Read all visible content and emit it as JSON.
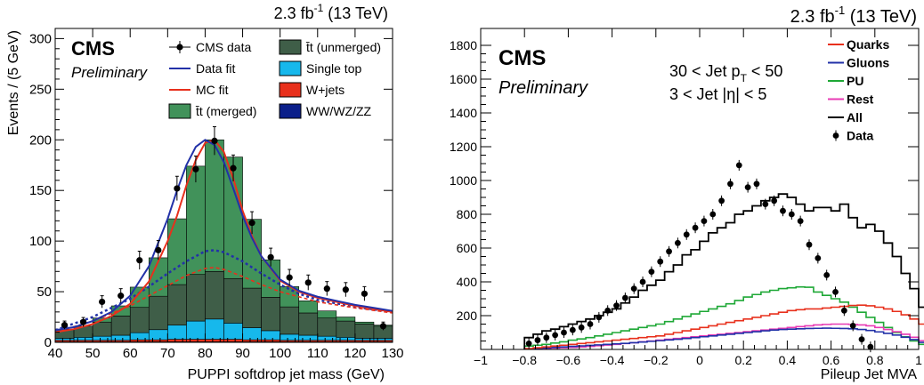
{
  "chart_data": [
    {
      "type": "bar",
      "stacked": true,
      "title": "",
      "lumi_label": "2.3 fb",
      "lumi_sup": "-1",
      "lumi_energy": " (13 TeV)",
      "cms_label": "CMS",
      "cms_sub": "Preliminary",
      "xlabel": "PUPPI softdrop jet mass (GeV)",
      "ylabel": "Events / (5 GeV)",
      "xlim": [
        40,
        130
      ],
      "ylim": [
        0,
        310
      ],
      "xticks": [
        40,
        50,
        60,
        70,
        80,
        90,
        100,
        110,
        120,
        130
      ],
      "yticks": [
        0,
        50,
        100,
        150,
        200,
        250,
        300
      ],
      "bin_edges": [
        40,
        45,
        50,
        55,
        60,
        65,
        70,
        75,
        80,
        85,
        90,
        95,
        100,
        105,
        110,
        115,
        120,
        125,
        130
      ],
      "stack": [
        {
          "name": "WW/WZ/ZZ",
          "color": "#0b1f8a",
          "values": [
            0.5,
            0.5,
            0.5,
            0.5,
            0.5,
            0.5,
            0.5,
            0.5,
            0.5,
            0.5,
            0.5,
            0.5,
            0.5,
            0.5,
            0.5,
            0.5,
            0.5,
            0.5
          ]
        },
        {
          "name": "W+jets",
          "color": "#e8301c",
          "values": [
            1.5,
            1.5,
            1.5,
            1.5,
            2,
            2,
            2.5,
            2.5,
            2.5,
            2.5,
            2,
            2,
            1.5,
            1.5,
            1.5,
            1.5,
            1.5,
            1.5
          ]
        },
        {
          "name": "Single top",
          "color": "#16b8ec",
          "values": [
            2,
            3,
            4,
            5,
            7,
            10,
            14,
            18,
            20,
            16,
            12,
            9,
            6,
            5,
            4,
            3,
            2,
            2
          ]
        },
        {
          "name": "t̄t (unmerged)",
          "color": "#3f5e48",
          "values": [
            9,
            11,
            14,
            19,
            25,
            33,
            40,
            46,
            47,
            44,
            39,
            33,
            27,
            22,
            18,
            16,
            14,
            12
          ]
        },
        {
          "name": "t̄t (merged)",
          "color": "#41925a",
          "values": [
            0,
            0,
            4,
            10,
            20,
            38,
            65,
            107,
            130,
            120,
            68,
            37,
            20,
            12,
            7,
            4,
            2,
            1
          ]
        }
      ],
      "data_points": {
        "name": "CMS data",
        "x": [
          42.5,
          47.5,
          52.5,
          57.5,
          62.5,
          67.5,
          72.5,
          77.5,
          82.5,
          87.5,
          92.5,
          97.5,
          102.5,
          107.5,
          112.5,
          117.5,
          122.5,
          127.5
        ],
        "y": [
          17,
          20,
          40,
          46,
          81,
          91,
          152,
          171,
          199,
          172,
          118,
          84,
          64,
          59,
          53,
          52,
          48,
          16
        ],
        "err": [
          4,
          4.5,
          6,
          7,
          9,
          9.5,
          12,
          13,
          14,
          13,
          11,
          9,
          8,
          7.5,
          7,
          7,
          7,
          4
        ]
      },
      "data_fit": {
        "name": "Data fit",
        "color": "#2231a8",
        "x": [
          40,
          45,
          50,
          55,
          60,
          65,
          70,
          72.5,
          75,
          77.5,
          80,
          82.5,
          85,
          87.5,
          90,
          92.5,
          95,
          100,
          105,
          110,
          115,
          120,
          125,
          130
        ],
        "y": [
          12,
          15,
          21,
          30,
          46,
          75,
          122,
          150,
          175,
          193,
          200,
          195,
          178,
          152,
          125,
          103,
          85,
          62,
          51,
          45,
          41,
          37,
          34,
          31
        ]
      },
      "mc_fit": {
        "name": "MC fit",
        "color": "#e8301c",
        "x": [
          40,
          45,
          50,
          55,
          60,
          65,
          70,
          72.5,
          75,
          77.5,
          80,
          82.5,
          85,
          87.5,
          90,
          92.5,
          95,
          100,
          105,
          110,
          115,
          120,
          125,
          130
        ],
        "y": [
          10,
          13,
          18,
          26,
          38,
          60,
          100,
          125,
          155,
          180,
          197,
          200,
          188,
          162,
          130,
          105,
          85,
          61,
          50,
          44,
          40,
          36,
          33,
          30
        ]
      },
      "dashed_lines": [
        {
          "color": "#2231a8",
          "x": [
            40,
            50,
            60,
            65,
            70,
            75,
            80,
            82.5,
            85,
            90,
            95,
            100,
            105,
            110,
            120,
            130
          ],
          "y": [
            12,
            25,
            43,
            55,
            68,
            80,
            90,
            91,
            89,
            80,
            68,
            57,
            48,
            42,
            35,
            30
          ]
        },
        {
          "color": "#e8301c",
          "x": [
            40,
            50,
            60,
            65,
            70,
            75,
            80,
            82.5,
            85,
            90,
            95,
            100,
            105,
            110,
            120,
            130
          ],
          "y": [
            10,
            21,
            36,
            46,
            56,
            66,
            73,
            74,
            72,
            65,
            57,
            50,
            45,
            40,
            34,
            29
          ]
        }
      ],
      "legend": [
        {
          "label": "CMS data",
          "kind": "marker"
        },
        {
          "label": "Data fit",
          "kind": "line",
          "color": "#2231a8"
        },
        {
          "label": "MC fit",
          "kind": "line",
          "color": "#e8301c"
        },
        {
          "label": "t̄t (merged)",
          "kind": "box",
          "color": "#41925a"
        },
        {
          "label": "t̄t (unmerged)",
          "kind": "box",
          "color": "#3f5e48"
        },
        {
          "label": "Single top",
          "kind": "box",
          "color": "#16b8ec"
        },
        {
          "label": "W+jets",
          "kind": "box",
          "color": "#e8301c"
        },
        {
          "label": "WW/WZ/ZZ",
          "kind": "box",
          "color": "#0b1f8a"
        }
      ],
      "legend_position": "top-right"
    },
    {
      "type": "line",
      "step": true,
      "title": "",
      "lumi_label": "2.3 fb",
      "lumi_sup": "-1",
      "lumi_energy": " (13 TeV)",
      "cms_label": "CMS",
      "cms_sub": "Preliminary",
      "cut_line1_prefix": "30 < Jet p",
      "cut_line1_sub": "T",
      "cut_line1_suffix": " < 50",
      "cut_line2": "3 < Jet |η| < 5",
      "xlabel": "Pileup Jet MVA",
      "ylabel": "",
      "xlim": [
        -1,
        1
      ],
      "ylim": [
        0,
        1900
      ],
      "xticks": [
        -1,
        -0.8,
        -0.6,
        -0.4,
        -0.2,
        0,
        0.2,
        0.4,
        0.6,
        0.8,
        1
      ],
      "xtick_labels": [
        "−1",
        "−0.8",
        "−0.6",
        "−0.4",
        "−0.2",
        "0",
        "0.2",
        "0.4",
        "0.6",
        "0.8",
        "1"
      ],
      "yticks": [
        200,
        400,
        600,
        800,
        1000,
        1200,
        1400,
        1600,
        1800
      ],
      "bin_start": -0.8,
      "bin_width": 0.04,
      "series": [
        {
          "name": "Quarks",
          "color": "#e8301c",
          "values": [
            5,
            10,
            15,
            20,
            25,
            30,
            35,
            40,
            45,
            50,
            55,
            60,
            65,
            70,
            75,
            80,
            90,
            100,
            110,
            120,
            130,
            140,
            150,
            160,
            170,
            180,
            190,
            200,
            210,
            220,
            230,
            235,
            240,
            240,
            245,
            250,
            255,
            260,
            262,
            258,
            250,
            240,
            225,
            205,
            180,
            150,
            115,
            75,
            30,
            5
          ]
        },
        {
          "name": "Gluons",
          "color": "#2231a8",
          "values": [
            3,
            6,
            9,
            12,
            15,
            18,
            21,
            24,
            27,
            30,
            33,
            36,
            40,
            44,
            48,
            52,
            56,
            60,
            65,
            70,
            75,
            80,
            85,
            90,
            95,
            100,
            105,
            110,
            115,
            118,
            120,
            122,
            124,
            125,
            126,
            125,
            124,
            122,
            118,
            112,
            104,
            95,
            85,
            72,
            58,
            42,
            28,
            15,
            6,
            2
          ]
        },
        {
          "name": "PU",
          "color": "#1ea836",
          "values": [
            20,
            25,
            30,
            38,
            45,
            55,
            62,
            70,
            80,
            90,
            100,
            110,
            120,
            130,
            140,
            150,
            165,
            180,
            195,
            210,
            225,
            240,
            255,
            270,
            290,
            310,
            325,
            340,
            350,
            360,
            365,
            370,
            368,
            340,
            320,
            300,
            280,
            250,
            220,
            190,
            160,
            130,
            100,
            75,
            50,
            30,
            15,
            8,
            3,
            1
          ]
        },
        {
          "name": "Rest",
          "color": "#e83ab4",
          "values": [
            2,
            4,
            6,
            8,
            10,
            12,
            15,
            18,
            22,
            26,
            30,
            35,
            40,
            45,
            50,
            55,
            60,
            65,
            70,
            75,
            80,
            85,
            90,
            95,
            100,
            105,
            110,
            115,
            120,
            125,
            130,
            135,
            140,
            145,
            148,
            150,
            150,
            148,
            145,
            140,
            130,
            118,
            105,
            90,
            72,
            52,
            34,
            18,
            6,
            2
          ]
        },
        {
          "name": "All",
          "color": "#000000",
          "values": [
            70,
            90,
            110,
            120,
            135,
            150,
            165,
            180,
            200,
            220,
            240,
            275,
            310,
            350,
            380,
            410,
            460,
            500,
            560,
            590,
            640,
            690,
            720,
            750,
            800,
            820,
            850,
            880,
            900,
            920,
            900,
            860,
            820,
            840,
            840,
            820,
            860,
            780,
            720,
            740,
            700,
            630,
            550,
            450,
            360,
            250,
            140,
            60,
            15,
            3
          ]
        },
        {
          "name": "Data",
          "color": "#000000",
          "marker": true,
          "x": [
            -0.78,
            -0.74,
            -0.7,
            -0.66,
            -0.62,
            -0.58,
            -0.54,
            -0.5,
            -0.46,
            -0.42,
            -0.38,
            -0.34,
            -0.3,
            -0.26,
            -0.22,
            -0.18,
            -0.14,
            -0.1,
            -0.06,
            -0.02,
            0.02,
            0.06,
            0.1,
            0.14,
            0.18,
            0.22,
            0.26,
            0.3,
            0.34,
            0.38,
            0.42,
            0.46,
            0.5,
            0.54,
            0.58,
            0.62,
            0.66,
            0.7,
            0.74,
            0.78
          ],
          "values": [
            35,
            55,
            70,
            85,
            100,
            115,
            130,
            150,
            190,
            230,
            260,
            305,
            360,
            400,
            460,
            520,
            580,
            630,
            680,
            720,
            760,
            800,
            880,
            980,
            1090,
            960,
            980,
            860,
            880,
            820,
            800,
            760,
            620,
            540,
            440,
            340,
            230,
            140,
            60,
            15
          ]
        }
      ],
      "legend_position": "top-right"
    }
  ]
}
